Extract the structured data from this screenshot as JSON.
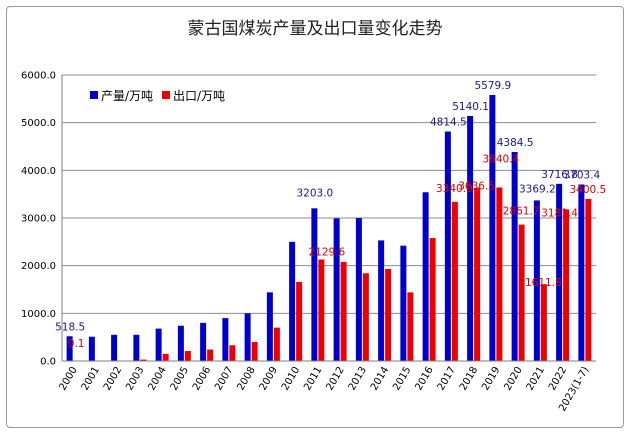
{
  "chart_data": {
    "type": "bar",
    "title": "蒙古国煤炭产量及出口量变化走势",
    "xlabel": "",
    "ylabel": "",
    "ylim": [
      0,
      6000
    ],
    "yticks": [
      "0.0",
      "1000.0",
      "2000.0",
      "3000.0",
      "4000.0",
      "5000.0",
      "6000.0"
    ],
    "grid": true,
    "legend_position": "top-left",
    "categories": [
      "2000",
      "2001",
      "2002",
      "2003",
      "2004",
      "2005",
      "2006",
      "2007",
      "2008",
      "2009",
      "2010",
      "2011",
      "2012",
      "2013",
      "2014",
      "2015",
      "2016",
      "2017",
      "2018",
      "2019",
      "2020",
      "2021",
      "2022",
      "2023(1-7)"
    ],
    "series": [
      {
        "name": "产量/万吨",
        "color": "#0000cc",
        "values": [
          518.5,
          510,
          550,
          550,
          680,
          740,
          800,
          900,
          1000,
          1440,
          2500,
          3203.0,
          2990,
          3000,
          2530,
          2420,
          3540,
          4814.5,
          5140.1,
          5579.9,
          4384.5,
          3369.2,
          3716.8,
          3703.4
        ],
        "labels": [
          "518.5",
          "",
          "",
          "",
          "",
          "",
          "",
          "",
          "",
          "",
          "",
          "3203.0",
          "",
          "",
          "",
          "",
          "",
          "4814.5",
          "5140.1",
          "5579.9",
          "4384.5",
          "3369.2",
          "3716.8",
          "3703.4"
        ]
      },
      {
        "name": "出口/万吨",
        "color": "#ee0000",
        "values": [
          0.1,
          0,
          0,
          30,
          150,
          210,
          240,
          330,
          400,
          700,
          1660,
          2129.6,
          2080,
          1840,
          1930,
          1440,
          2580,
          3340.0,
          3636.5,
          3640.4,
          2861.7,
          1611.8,
          3181.4,
          3400.5
        ],
        "labels": [
          "0.1",
          "",
          "",
          "",
          "",
          "",
          "",
          "",
          "",
          "",
          "",
          "2129.6",
          "",
          "",
          "",
          "",
          "",
          "3340.0",
          "3636.5",
          "3640.4",
          "2861.7",
          "1611.8",
          "3181.4",
          "3400.5"
        ]
      }
    ]
  }
}
